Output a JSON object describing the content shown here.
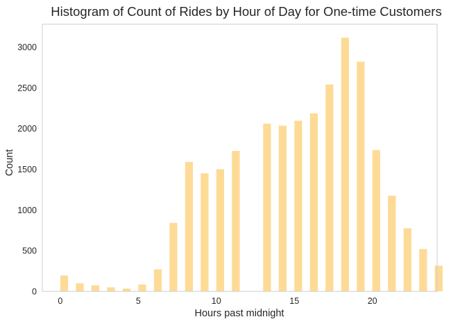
{
  "chart_data": {
    "type": "bar",
    "title": "Histogram of Count of Rides by Hour of Day for One-time Customers",
    "xlabel": "Hours past midnight",
    "ylabel": "Count",
    "x": [
      0,
      1,
      2,
      3,
      4,
      5,
      6,
      7,
      8,
      9,
      10,
      11,
      13,
      14,
      15,
      16,
      17,
      18,
      19,
      20,
      21,
      22,
      23,
      24
    ],
    "values": [
      195,
      100,
      75,
      50,
      35,
      85,
      270,
      840,
      1590,
      1450,
      1500,
      1725,
      2060,
      2035,
      2095,
      2185,
      2540,
      3115,
      2820,
      1735,
      1175,
      775,
      520,
      315
    ],
    "bar_width": 0.5,
    "xticks": [
      0,
      5,
      10,
      15,
      20
    ],
    "xtick_labels": [
      "0",
      "5",
      "10",
      "15",
      "20"
    ],
    "yticks": [
      0,
      500,
      1000,
      1500,
      2000,
      2500,
      3000
    ],
    "ytick_labels": [
      "0",
      "500",
      "1000",
      "1500",
      "2000",
      "2500",
      "3000"
    ],
    "xlim": [
      -1.15,
      24.15
    ],
    "ylim": [
      0,
      3280
    ],
    "grid": false,
    "bar_color": "#FDDB97",
    "spine_color": "#cccccc"
  }
}
